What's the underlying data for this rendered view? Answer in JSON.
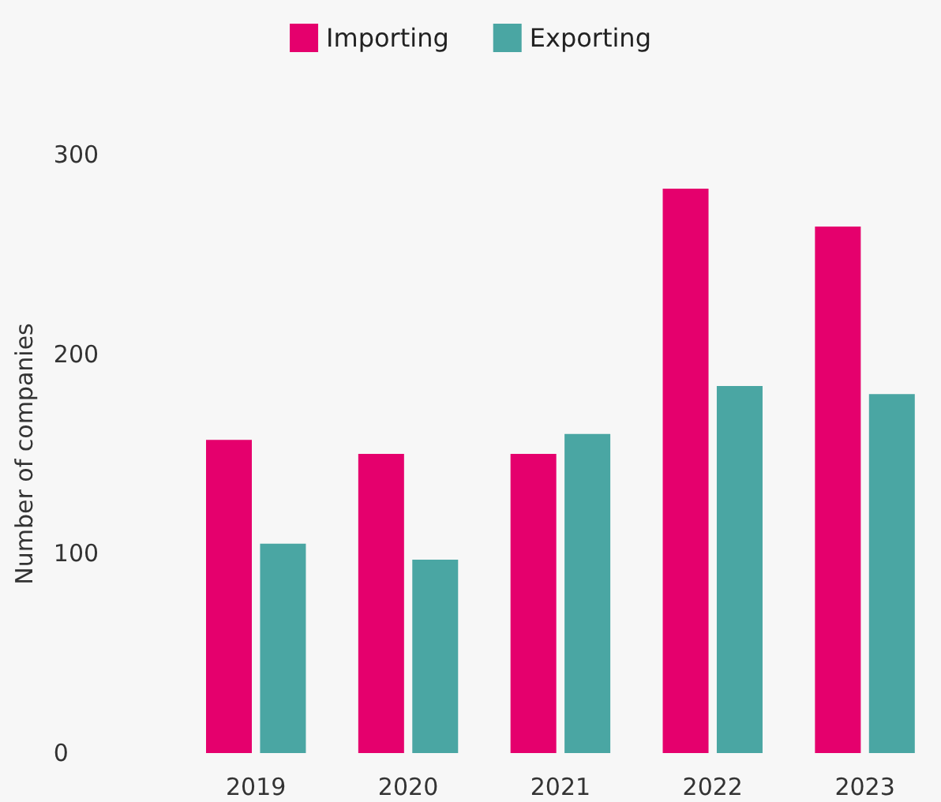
{
  "chart_data": {
    "type": "bar",
    "ylabel": "Number of companies",
    "categories": [
      "2019",
      "2020",
      "2021",
      "2022",
      "2023"
    ],
    "series": [
      {
        "name": "Importing",
        "color": "#e5006d",
        "values": [
          157,
          150,
          150,
          283,
          264
        ]
      },
      {
        "name": "Exporting",
        "color": "#4aa6a3",
        "values": [
          105,
          97,
          160,
          184,
          180
        ]
      }
    ],
    "ylim": [
      0,
      300
    ],
    "yticks": [
      0,
      100,
      200,
      300
    ],
    "grid": false,
    "legend": "top"
  }
}
